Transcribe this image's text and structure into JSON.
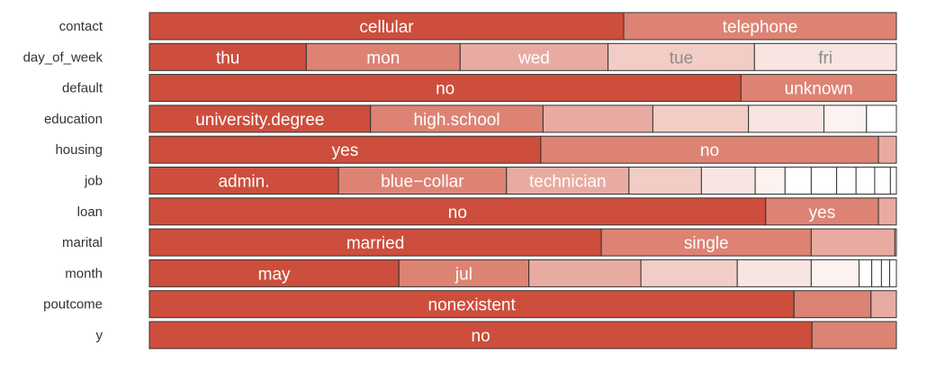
{
  "chart_data": {
    "type": "bar",
    "subtype": "stacked-proportion",
    "orientation": "horizontal",
    "title": "",
    "xlabel": "",
    "ylabel": "",
    "xlim": [
      0,
      1
    ],
    "grid": false,
    "legend": "none",
    "colors": {
      "shades": [
        "#cd4e3c",
        "#dd8374",
        "#e8aba1",
        "#f2cdc6",
        "#f8e4e0",
        "#fcf3f1",
        "#ffffff",
        "#ffffff",
        "#ffffff",
        "#ffffff",
        "#ffffff",
        "#ffffff",
        "#ffffff",
        "#ffffff"
      ],
      "label_dark_bg": "#ffffff",
      "label_light_bg": "#8c8c8c",
      "stroke": "#333333"
    },
    "rows": [
      {
        "name": "contact",
        "segments": [
          {
            "label": "cellular",
            "value": 0.635
          },
          {
            "label": "telephone",
            "value": 0.365
          }
        ]
      },
      {
        "name": "day_of_week",
        "segments": [
          {
            "label": "thu",
            "value": 0.21
          },
          {
            "label": "mon",
            "value": 0.206
          },
          {
            "label": "wed",
            "value": 0.198
          },
          {
            "label": "tue",
            "value": 0.196
          },
          {
            "label": "fri",
            "value": 0.19
          }
        ]
      },
      {
        "name": "default",
        "segments": [
          {
            "label": "no",
            "value": 0.792
          },
          {
            "label": "unknown",
            "value": 0.208
          }
        ]
      },
      {
        "name": "education",
        "segments": [
          {
            "label": "university.degree",
            "value": 0.296
          },
          {
            "label": "high.school",
            "value": 0.231
          },
          {
            "label": "",
            "value": 0.147
          },
          {
            "label": "",
            "value": 0.128
          },
          {
            "label": "",
            "value": 0.101
          },
          {
            "label": "",
            "value": 0.057
          },
          {
            "label": "",
            "value": 0.04
          }
        ]
      },
      {
        "name": "housing",
        "segments": [
          {
            "label": "yes",
            "value": 0.524
          },
          {
            "label": "no",
            "value": 0.452
          },
          {
            "label": "",
            "value": 0.024
          }
        ]
      },
      {
        "name": "job",
        "segments": [
          {
            "label": "admin.",
            "value": 0.253
          },
          {
            "label": "blue−collar",
            "value": 0.225
          },
          {
            "label": "technician",
            "value": 0.164
          },
          {
            "label": "",
            "value": 0.097
          },
          {
            "label": "",
            "value": 0.072
          },
          {
            "label": "",
            "value": 0.04
          },
          {
            "label": "",
            "value": 0.035
          },
          {
            "label": "",
            "value": 0.034
          },
          {
            "label": "",
            "value": 0.026
          },
          {
            "label": "",
            "value": 0.025
          },
          {
            "label": "",
            "value": 0.021
          },
          {
            "label": "",
            "value": 0.008
          }
        ]
      },
      {
        "name": "loan",
        "segments": [
          {
            "label": "no",
            "value": 0.825
          },
          {
            "label": "yes",
            "value": 0.151
          },
          {
            "label": "",
            "value": 0.024
          }
        ]
      },
      {
        "name": "marital",
        "segments": [
          {
            "label": "married",
            "value": 0.605
          },
          {
            "label": "single",
            "value": 0.281
          },
          {
            "label": "",
            "value": 0.112
          },
          {
            "label": "",
            "value": 0.002
          }
        ]
      },
      {
        "name": "month",
        "segments": [
          {
            "label": "may",
            "value": 0.334
          },
          {
            "label": "jul",
            "value": 0.174
          },
          {
            "label": "",
            "value": 0.15
          },
          {
            "label": "",
            "value": 0.129
          },
          {
            "label": "",
            "value": 0.099
          },
          {
            "label": "",
            "value": 0.064
          },
          {
            "label": "",
            "value": 0.017
          },
          {
            "label": "",
            "value": 0.013
          },
          {
            "label": "",
            "value": 0.011
          },
          {
            "label": "",
            "value": 0.009
          }
        ]
      },
      {
        "name": "poutcome",
        "segments": [
          {
            "label": "nonexistent",
            "value": 0.863
          },
          {
            "label": "",
            "value": 0.103
          },
          {
            "label": "",
            "value": 0.034
          }
        ]
      },
      {
        "name": "y",
        "segments": [
          {
            "label": "no",
            "value": 0.887
          },
          {
            "label": "",
            "value": 0.113
          }
        ]
      }
    ]
  }
}
